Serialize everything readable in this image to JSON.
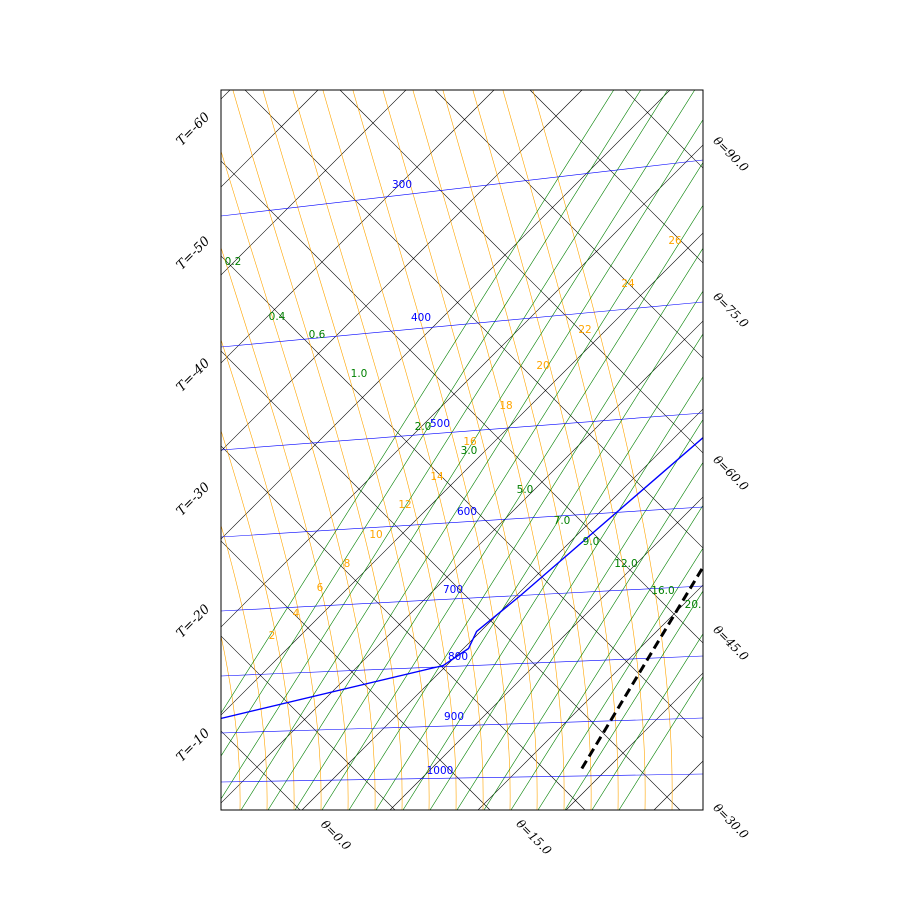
{
  "chart_data": {
    "type": "line",
    "title": "",
    "xlabel": "",
    "ylabel": "",
    "colors": {
      "isobar": "#0000ff",
      "mixing_ratio": "#008000",
      "theta_e": "#ffa500",
      "isotherm_theta": "#000000",
      "profile": "#0000ff",
      "parcel": "#000000"
    },
    "left_labels": [
      "T=-60",
      "T=-50",
      "T=-40",
      "T=-30",
      "T=-20",
      "T=-10"
    ],
    "right_labels": [
      "θ=90.0",
      "θ=75.0",
      "θ=60.0",
      "θ=45.0",
      "θ=30.0"
    ],
    "bottom_labels": [
      "θ=0.0",
      "θ=15.0"
    ],
    "isobar_labels": [
      "300",
      "400",
      "500",
      "600",
      "700",
      "800",
      "900",
      "1000"
    ],
    "mixing_ratio_labels": [
      "0.2",
      "0.4",
      "0.6",
      "1.0",
      "2.0",
      "3.0",
      "5.0",
      "7.0",
      "9.0",
      "12.0",
      "16.0",
      "20."
    ],
    "theta_e_labels": [
      "2",
      "4",
      "6",
      "8",
      "10",
      "12",
      "14",
      "16",
      "18",
      "20",
      "22",
      "24",
      "26"
    ],
    "series": [
      {
        "kind": "sounding",
        "points": [
          [
            -56,
            0.19
          ],
          [
            -54,
            0.94
          ],
          [
            -52,
            1.75
          ],
          [
            -20,
            4.25
          ],
          [
            -19,
            4.75
          ],
          [
            -20,
            5.25
          ],
          [
            -19,
            6.31
          ],
          [
            -15,
            12.0
          ],
          [
            -14,
            12.7
          ],
          [
            -5,
            17.6
          ],
          [
            -9,
            19.2
          ],
          [
            -6,
            20.8
          ],
          [
            -2,
            22.3
          ],
          [
            -5,
            24.1
          ],
          [
            -2,
            25.8
          ],
          [
            1,
            28.3
          ]
        ]
      },
      {
        "kind": "parcel",
        "style": "dashed",
        "points": [
          [
            -40,
            33.2
          ],
          [
            8,
            1.2
          ]
        ]
      }
    ]
  }
}
